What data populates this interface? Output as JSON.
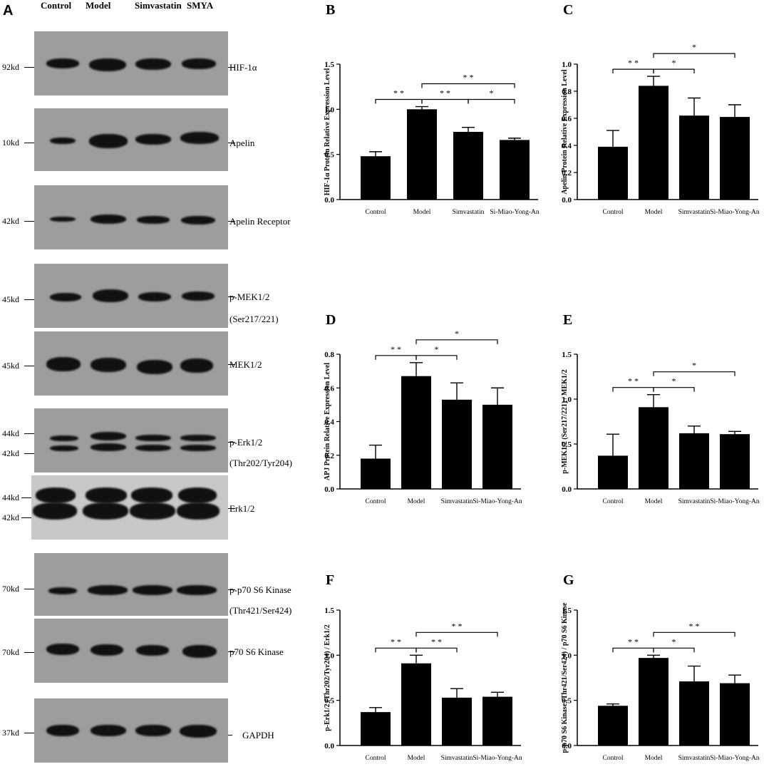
{
  "panel_a": {
    "letter": "A",
    "lanes": [
      "Control",
      "Model",
      "Simvastatin",
      "SMYA"
    ],
    "blots": [
      {
        "marker": "92kd",
        "label": "HIF-1α",
        "sub": ""
      },
      {
        "marker": "10kd",
        "label": "Apelin",
        "sub": ""
      },
      {
        "marker": "42kd",
        "label": "Apelin Receptor",
        "sub": ""
      },
      {
        "marker": "45kd",
        "label": "p-MEK1/2",
        "sub": "(Ser217/221)"
      },
      {
        "marker": "45kd",
        "label": "MEK1/2",
        "sub": ""
      },
      {
        "marker": "44kd",
        "marker2": "42kd",
        "label": "p-Erk1/2",
        "sub": "(Thr202/Tyr204)"
      },
      {
        "marker": "44kd",
        "marker2": "42kd",
        "label": "Erk1/2",
        "sub": ""
      },
      {
        "marker": "70kd",
        "label": "p-p70 S6 Kinase",
        "sub": "(Thr421/Ser424)"
      },
      {
        "marker": "70kd",
        "label": "p70 S6 Kinase",
        "sub": ""
      },
      {
        "marker": "37kd",
        "label": "GAPDH",
        "sub": ""
      }
    ]
  },
  "chart_data": [
    {
      "letter": "B",
      "type": "bar",
      "categories": [
        "Control",
        "Model",
        "Simvastatin",
        "Si-Miao-Yong-An"
      ],
      "values": [
        0.48,
        1.0,
        0.75,
        0.66
      ],
      "errors": [
        0.05,
        0.03,
        0.05,
        0.02
      ],
      "ylabel": "HIF-1α  Protein Relative Expression Level",
      "ylim": [
        0,
        1.5
      ],
      "yticks": [
        "0.0",
        "0.5",
        "1.0",
        "1.5"
      ],
      "ytick_values": [
        0,
        0.5,
        1.0,
        1.5
      ],
      "significance": [
        {
          "from": 0,
          "to": 1,
          "label": "* *"
        },
        {
          "from": 1,
          "to": 2,
          "label": "* *"
        },
        {
          "from": 2,
          "to": 3,
          "label": "*"
        },
        {
          "from": 1,
          "to": 3,
          "label": "* *"
        }
      ]
    },
    {
      "letter": "C",
      "type": "bar",
      "categories": [
        "Control",
        "Model",
        "Simvastatin",
        "Si-Miao-Yong-An"
      ],
      "values": [
        0.39,
        0.84,
        0.62,
        0.61
      ],
      "errors": [
        0.12,
        0.07,
        0.13,
        0.09
      ],
      "ylabel": "Apelin Protein Relative Expression Level",
      "ylim": [
        0,
        1.0
      ],
      "yticks": [
        "0.0",
        "0.2",
        "0.4",
        "0.6",
        "0.8",
        "1.0"
      ],
      "ytick_values": [
        0,
        0.2,
        0.4,
        0.6,
        0.8,
        1.0
      ],
      "significance": [
        {
          "from": 0,
          "to": 1,
          "label": "* *"
        },
        {
          "from": 1,
          "to": 2,
          "label": "*"
        },
        {
          "from": 1,
          "to": 3,
          "label": "*"
        }
      ]
    },
    {
      "letter": "D",
      "type": "bar",
      "categories": [
        "Control",
        "Model",
        "Simvastatin",
        "Si-Miao-Yong-An"
      ],
      "values": [
        0.18,
        0.67,
        0.53,
        0.5
      ],
      "errors": [
        0.08,
        0.08,
        0.1,
        0.1
      ],
      "ylabel": "APJ Protein Relative Expression Level",
      "ylim": [
        0,
        0.8
      ],
      "yticks": [
        "0.0",
        "0.2",
        "0.4",
        "0.6",
        "0.8"
      ],
      "ytick_values": [
        0,
        0.2,
        0.4,
        0.6,
        0.8
      ],
      "significance": [
        {
          "from": 0,
          "to": 1,
          "label": "* *"
        },
        {
          "from": 1,
          "to": 2,
          "label": "*"
        },
        {
          "from": 1,
          "to": 3,
          "label": "*"
        }
      ]
    },
    {
      "letter": "E",
      "type": "bar",
      "categories": [
        "Control",
        "Model",
        "Simvastatin",
        "Si-Miao-Yong-An"
      ],
      "values": [
        0.37,
        0.91,
        0.62,
        0.61
      ],
      "errors": [
        0.24,
        0.14,
        0.08,
        0.03
      ],
      "ylabel": "p-MEK1/2 (Ser217/221) / MEK1/2",
      "ylim": [
        0,
        1.5
      ],
      "yticks": [
        "0.0",
        "0.5",
        "1.0",
        "1.5"
      ],
      "ytick_values": [
        0,
        0.5,
        1.0,
        1.5
      ],
      "significance": [
        {
          "from": 0,
          "to": 1,
          "label": "* *"
        },
        {
          "from": 1,
          "to": 2,
          "label": "*"
        },
        {
          "from": 1,
          "to": 3,
          "label": "*"
        }
      ]
    },
    {
      "letter": "F",
      "type": "bar",
      "categories": [
        "Control",
        "Model",
        "Simvastatin",
        "Si-Miao-Yong-An"
      ],
      "values": [
        0.37,
        0.91,
        0.53,
        0.54
      ],
      "errors": [
        0.05,
        0.09,
        0.1,
        0.05
      ],
      "ylabel": "p-Erk1/2 (Thr202/Tyr204) / Erk1/2",
      "ylim": [
        0,
        1.5
      ],
      "yticks": [
        "0.0",
        "0.5",
        "1.0",
        "1.5"
      ],
      "ytick_values": [
        0,
        0.5,
        1.0,
        1.5
      ],
      "significance": [
        {
          "from": 0,
          "to": 1,
          "label": "* *"
        },
        {
          "from": 1,
          "to": 2,
          "label": "* *"
        },
        {
          "from": 1,
          "to": 3,
          "label": "* *"
        }
      ]
    },
    {
      "letter": "G",
      "type": "bar",
      "categories": [
        "Control",
        "Model",
        "Simvastatin",
        "Si-Miao-Yong-An"
      ],
      "values": [
        0.44,
        0.97,
        0.71,
        0.69
      ],
      "errors": [
        0.02,
        0.03,
        0.17,
        0.09
      ],
      "ylabel": "p-p70 S6 Kinase (Thr421/Ser424) / p70 S6 Kinase",
      "ylim": [
        0,
        1.5
      ],
      "yticks": [
        "0.0",
        "0.5",
        "1.0",
        "1.5"
      ],
      "ytick_values": [
        0,
        0.5,
        1.0,
        1.5
      ],
      "significance": [
        {
          "from": 0,
          "to": 1,
          "label": "* *"
        },
        {
          "from": 1,
          "to": 2,
          "label": "*"
        },
        {
          "from": 1,
          "to": 3,
          "label": "* *"
        }
      ]
    }
  ]
}
